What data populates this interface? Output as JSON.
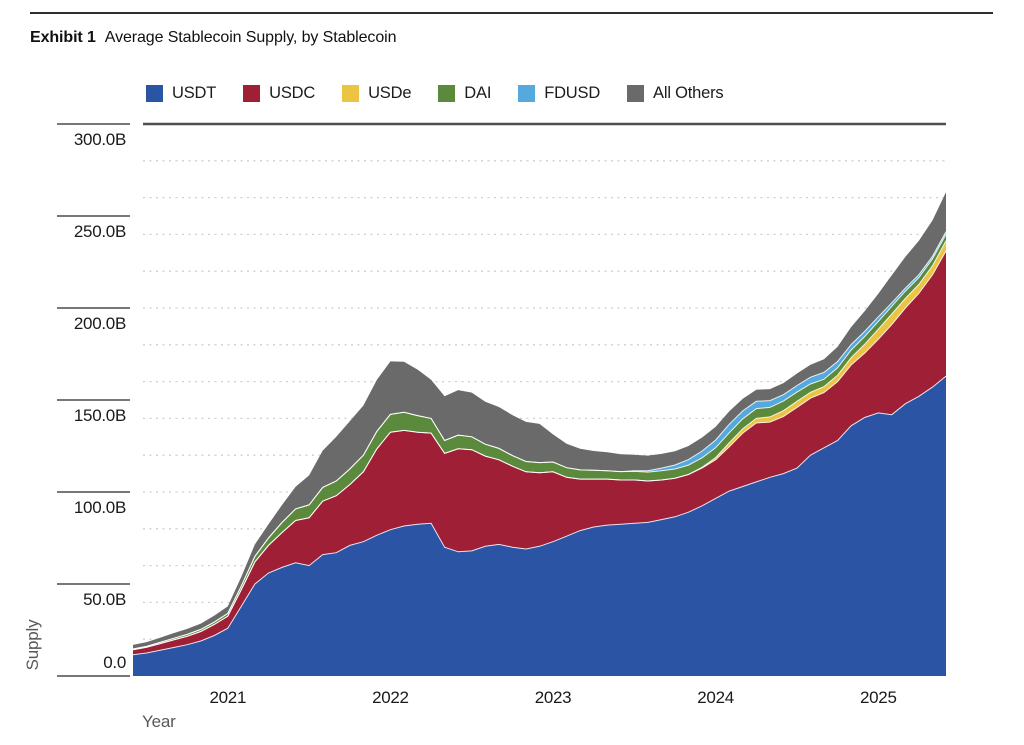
{
  "page": {
    "exhibit_label": "Exhibit 1",
    "title": "Average Stablecoin Supply, by Stablecoin"
  },
  "chart_data": {
    "type": "area",
    "stacked": true,
    "title": "Average Stablecoin Supply, by Stablecoin",
    "xlabel": "Year",
    "ylabel": "Supply",
    "x_start": "2020-06",
    "x_end": "2025-06",
    "x_frequency": "monthly",
    "x_tick_labels": [
      "2021",
      "2022",
      "2023",
      "2024",
      "2025"
    ],
    "x_tick_month_index": [
      7,
      19,
      31,
      43,
      55
    ],
    "ylim": [
      0,
      300
    ],
    "y_tick_values": [
      0,
      50,
      100,
      150,
      200,
      250,
      300
    ],
    "y_tick_labels": [
      "0.0",
      "50.0B",
      "100.0B",
      "150.0B",
      "200.0B",
      "250.0B",
      "300.0B"
    ],
    "grid": {
      "y_interval_billions": 20,
      "style": "dotted",
      "color": "#cfcfcf"
    },
    "legend_position": "top",
    "units": "billions USD",
    "series": [
      {
        "name": "USDT",
        "color": "#2b54a5",
        "values": [
          11.5,
          12.5,
          14,
          15.5,
          17,
          19,
          22,
          26,
          38,
          50,
          56,
          59,
          61.5,
          60,
          66,
          67,
          71,
          73,
          76.5,
          79.5,
          81.5,
          82.5,
          83,
          70,
          67.5,
          68,
          70.5,
          71.5,
          70,
          69,
          70.5,
          73,
          76,
          79,
          81,
          82,
          82.5,
          83,
          83.5,
          85,
          86.5,
          89,
          92.5,
          96.5,
          100.5,
          103,
          105.5,
          108,
          110,
          113,
          120,
          124,
          128,
          136,
          140.5,
          143,
          142,
          148,
          152,
          157,
          163
        ]
      },
      {
        "name": "USDC",
        "color": "#9e1f36",
        "values": [
          2.8,
          3.1,
          3.6,
          4.1,
          4.6,
          5.2,
          6,
          6.5,
          9,
          12,
          15,
          19,
          23,
          26,
          29,
          31,
          33,
          38,
          47,
          53,
          52,
          50,
          49,
          51,
          56,
          55,
          49,
          46,
          44,
          42,
          40,
          38,
          32,
          28,
          26,
          25,
          24,
          23.5,
          22.5,
          21.5,
          21,
          20.5,
          20.5,
          21,
          24,
          29,
          32,
          30,
          31,
          33,
          31,
          30,
          32,
          33,
          35,
          40,
          49,
          52,
          56,
          61,
          68
        ]
      },
      {
        "name": "USDe",
        "color": "#ecc444",
        "values": [
          0,
          0,
          0,
          0,
          0,
          0,
          0,
          0,
          0,
          0,
          0,
          0,
          0,
          0,
          0,
          0,
          0,
          0,
          0,
          0,
          0,
          0,
          0,
          0,
          0,
          0,
          0,
          0,
          0,
          0,
          0,
          0,
          0,
          0,
          0,
          0,
          0,
          0,
          0,
          0,
          0,
          0,
          0.4,
          1.2,
          2.2,
          2.4,
          2.5,
          2.8,
          3.2,
          3.3,
          3.2,
          3.3,
          3.5,
          4,
          4.8,
          5.5,
          5.8,
          5.2,
          4.8,
          5,
          5.5
        ]
      },
      {
        "name": "DAI",
        "color": "#5c8a3d",
        "values": [
          0.4,
          0.5,
          0.7,
          0.9,
          1,
          1.1,
          1.3,
          1.5,
          2,
          3,
          4,
          5.5,
          6.3,
          7,
          7.5,
          8,
          8.5,
          9,
          9.5,
          9.7,
          9.8,
          9,
          8,
          7,
          7.4,
          7,
          6.5,
          6.2,
          5.8,
          5.6,
          5.5,
          5.3,
          5.2,
          5,
          4.8,
          4.6,
          4.6,
          4.7,
          4.8,
          5,
          5,
          5.1,
          5.2,
          5.3,
          5.5,
          5.4,
          5.3,
          5.2,
          5.2,
          5,
          4.5,
          4,
          4,
          4.1,
          4.2,
          4.2,
          4.2,
          4,
          3.8,
          3.7,
          3.6
        ]
      },
      {
        "name": "FDUSD",
        "color": "#55a9dc",
        "values": [
          0,
          0,
          0,
          0,
          0,
          0,
          0,
          0,
          0,
          0,
          0,
          0,
          0,
          0,
          0,
          0,
          0,
          0,
          0,
          0,
          0,
          0,
          0,
          0,
          0,
          0,
          0,
          0,
          0,
          0,
          0,
          0,
          0,
          0,
          0,
          0,
          0,
          0.3,
          0.8,
          1.5,
          2.2,
          3,
          3.7,
          4.2,
          4.6,
          4.3,
          4,
          3.7,
          3.5,
          3.6,
          3.7,
          3.7,
          3.4,
          3,
          2.8,
          2.5,
          1.8,
          1.6,
          1.5,
          1.4,
          1.4
        ]
      },
      {
        "name": "All Others",
        "color": "#6a6a6a",
        "values": [
          2.2,
          2.3,
          2.5,
          2.8,
          3,
          3.2,
          3.5,
          3.8,
          5,
          6.5,
          7.5,
          9.5,
          12,
          16,
          20,
          24,
          26,
          27,
          28,
          28.8,
          27.5,
          25,
          21,
          24,
          24.5,
          24,
          23,
          22.5,
          22,
          21.5,
          21,
          15,
          13,
          11.5,
          10.5,
          10,
          9.4,
          8.7,
          8.2,
          7.7,
          7.5,
          7.4,
          7.3,
          7.2,
          7,
          6.6,
          6.3,
          6.2,
          6.3,
          6.5,
          6.8,
          7.2,
          8,
          9.5,
          11,
          12.5,
          15,
          17,
          18.5,
          19.5,
          21.5
        ]
      }
    ]
  }
}
